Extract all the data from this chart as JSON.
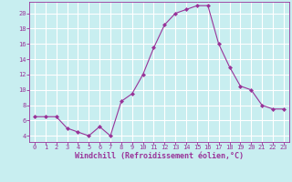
{
  "x": [
    0,
    1,
    2,
    3,
    4,
    5,
    6,
    7,
    8,
    9,
    10,
    11,
    12,
    13,
    14,
    15,
    16,
    17,
    18,
    19,
    20,
    21,
    22,
    23
  ],
  "y": [
    6.5,
    6.5,
    6.5,
    5.0,
    4.5,
    4.0,
    5.2,
    4.0,
    8.5,
    9.5,
    12.0,
    15.5,
    18.5,
    20.0,
    20.5,
    21.0,
    21.0,
    16.0,
    13.0,
    10.5,
    10.0,
    8.0,
    7.5,
    7.5
  ],
  "line_color": "#993399",
  "marker": "D",
  "marker_size": 2.0,
  "xlabel": "Windchill (Refroidissement éolien,°C)",
  "bg_color": "#c8eef0",
  "grid_color": "#ffffff",
  "xlim": [
    -0.5,
    23.5
  ],
  "ylim": [
    3.2,
    21.5
  ],
  "yticks": [
    4,
    6,
    8,
    10,
    12,
    14,
    16,
    18,
    20
  ],
  "xticks": [
    0,
    1,
    2,
    3,
    4,
    5,
    6,
    7,
    8,
    9,
    10,
    11,
    12,
    13,
    14,
    15,
    16,
    17,
    18,
    19,
    20,
    21,
    22,
    23
  ],
  "tick_color": "#993399",
  "label_color": "#993399",
  "tick_fontsize": 5.0,
  "xlabel_fontsize": 6.0,
  "linewidth": 0.8
}
